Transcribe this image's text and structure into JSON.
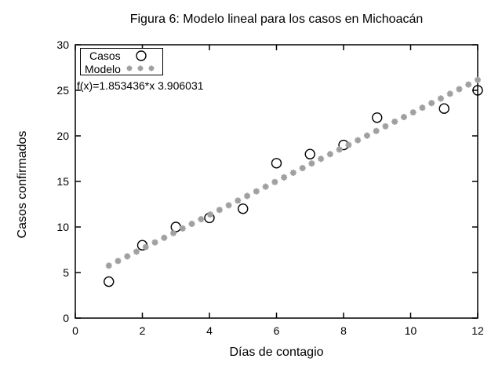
{
  "chart_data": {
    "type": "scatter",
    "title": "Figura 6: Modelo lineal para los casos en Michoacán",
    "xlabel": "Días de contagio",
    "ylabel": "Casos confirmados",
    "xlim": [
      0,
      12
    ],
    "ylim": [
      0,
      30
    ],
    "xticks": [
      0,
      2,
      4,
      6,
      8,
      10,
      12
    ],
    "yticks": [
      0,
      5,
      10,
      15,
      20,
      25,
      30
    ],
    "grid": false,
    "legend_position": "top-left-inside",
    "annotation": "f(x)=1.853436*x 3.906031",
    "series": [
      {
        "name": "Casos",
        "marker": "circle",
        "color": "#000000",
        "x": [
          1,
          2,
          3,
          4,
          5,
          6,
          7,
          8,
          9,
          11,
          12
        ],
        "y": [
          4,
          8,
          10,
          11,
          12,
          17,
          18,
          19,
          22,
          23,
          25
        ]
      },
      {
        "name": "Modelo",
        "marker": "asterisk",
        "color": "#a0a0a0",
        "model": {
          "expression": "f(x)=1.853436*x+3.906031",
          "slope": 1.853436,
          "intercept": 3.906031,
          "x_start": 1,
          "x_end": 12,
          "samples": 41
        }
      }
    ]
  }
}
